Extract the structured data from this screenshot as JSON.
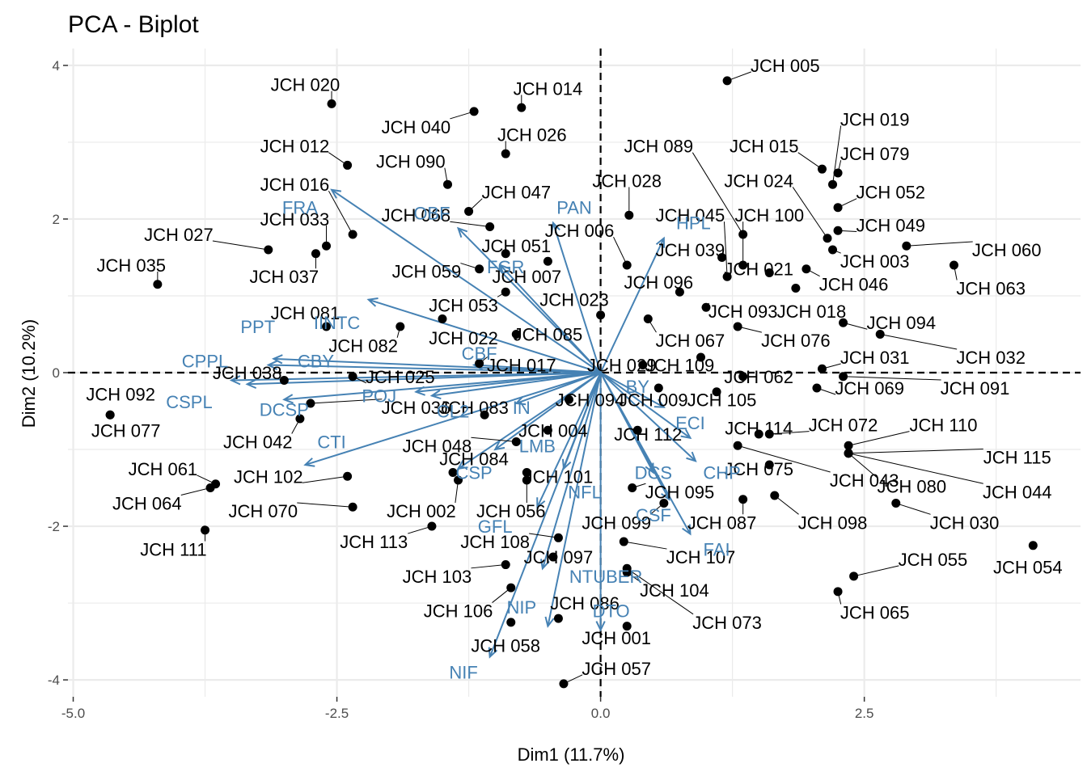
{
  "chart_data": {
    "type": "scatter",
    "title": "PCA - Biplot",
    "xlabel": "Dim1 (11.7%)",
    "ylabel": "Dim2 (10.2%)",
    "xlim": [
      -5.05,
      4.55
    ],
    "ylim": [
      -4.22,
      4.22
    ],
    "x_ticks": [
      -5.0,
      -2.5,
      0.0,
      2.5
    ],
    "x_tick_labels": [
      "-5.0",
      "-2.5",
      "0.0",
      "2.5"
    ],
    "y_ticks": [
      -4,
      -2,
      0,
      2,
      4
    ],
    "y_tick_labels": [
      "-4",
      "-2",
      "0",
      "2",
      "4"
    ],
    "grid": true,
    "reference_lines": {
      "x": 0,
      "y": 0,
      "style": "dashed"
    },
    "colors": {
      "individuals": "#000000",
      "variables": "#4682B4",
      "grid": "#ebebeb"
    },
    "individuals": [
      {
        "name": "JCH 005",
        "x": 1.2,
        "y": 3.8,
        "lx": 1.75,
        "ly": 4.0
      },
      {
        "name": "JCH 020",
        "x": -2.55,
        "y": 3.5,
        "lx": -2.8,
        "ly": 3.75
      },
      {
        "name": "JCH 014",
        "x": -0.75,
        "y": 3.45,
        "lx": -0.5,
        "ly": 3.7
      },
      {
        "name": "JCH 040",
        "x": -1.2,
        "y": 3.4,
        "lx": -1.75,
        "ly": 3.2
      },
      {
        "name": "JCH 026",
        "x": -0.9,
        "y": 2.85,
        "lx": -0.65,
        "ly": 3.1
      },
      {
        "name": "JCH 012",
        "x": -2.4,
        "y": 2.7,
        "lx": -2.9,
        "ly": 2.95
      },
      {
        "name": "JCH 090",
        "x": -1.45,
        "y": 2.45,
        "lx": -1.8,
        "ly": 2.75
      },
      {
        "name": "JCH 089",
        "x": 1.35,
        "y": 1.8,
        "lx": 0.55,
        "ly": 2.95
      },
      {
        "name": "JCH 015",
        "x": 2.1,
        "y": 2.65,
        "lx": 1.55,
        "ly": 2.95
      },
      {
        "name": "JCH 019",
        "x": 2.2,
        "y": 2.45,
        "lx": 2.6,
        "ly": 3.3
      },
      {
        "name": "JCH 079",
        "x": 2.25,
        "y": 2.6,
        "lx": 2.6,
        "ly": 2.85
      },
      {
        "name": "JCH 016",
        "x": -2.35,
        "y": 1.8,
        "lx": -2.9,
        "ly": 2.45
      },
      {
        "name": "JCH 047",
        "x": -1.25,
        "y": 2.1,
        "lx": -0.8,
        "ly": 2.35
      },
      {
        "name": "JCH 028",
        "x": 0.27,
        "y": 2.05,
        "lx": 0.25,
        "ly": 2.5
      },
      {
        "name": "JCH 024",
        "x": 2.15,
        "y": 1.75,
        "lx": 1.5,
        "ly": 2.5
      },
      {
        "name": "JCH 052",
        "x": 2.25,
        "y": 2.15,
        "lx": 2.75,
        "ly": 2.35
      },
      {
        "name": "JCH 033",
        "x": -2.6,
        "y": 1.65,
        "lx": -2.9,
        "ly": 2.0
      },
      {
        "name": "JCH 068",
        "x": -1.05,
        "y": 1.9,
        "lx": -1.75,
        "ly": 2.05
      },
      {
        "name": "JCH 027",
        "x": -3.15,
        "y": 1.6,
        "lx": -4.0,
        "ly": 1.8
      },
      {
        "name": "JCH 045",
        "x": 1.2,
        "y": 1.25,
        "lx": 0.85,
        "ly": 2.05
      },
      {
        "name": "JCH 100",
        "x": 1.35,
        "y": 1.4,
        "lx": 1.6,
        "ly": 2.05
      },
      {
        "name": "JCH 006",
        "x": 0.25,
        "y": 1.4,
        "lx": -0.2,
        "ly": 1.85
      },
      {
        "name": "JCH 049",
        "x": 2.25,
        "y": 1.85,
        "lx": 2.75,
        "ly": 1.92
      },
      {
        "name": "JCH 051",
        "x": -0.9,
        "y": 1.55,
        "lx": -0.8,
        "ly": 1.65
      },
      {
        "name": "JCH 039",
        "x": 1.15,
        "y": 1.5,
        "lx": 0.85,
        "ly": 1.6
      },
      {
        "name": "JCH 060",
        "x": 2.9,
        "y": 1.65,
        "lx": 3.85,
        "ly": 1.6
      },
      {
        "name": "JCH 035",
        "x": -4.2,
        "y": 1.15,
        "lx": -4.45,
        "ly": 1.4
      },
      {
        "name": "JCH 059",
        "x": -1.15,
        "y": 1.35,
        "lx": -1.65,
        "ly": 1.32
      },
      {
        "name": "JCH 007",
        "x": -0.5,
        "y": 1.45,
        "lx": -0.7,
        "ly": 1.25
      },
      {
        "name": "JCH 037",
        "x": -2.7,
        "y": 1.55,
        "lx": -3.0,
        "ly": 1.25
      },
      {
        "name": "JCH 003",
        "x": 2.2,
        "y": 1.6,
        "lx": 2.6,
        "ly": 1.45
      },
      {
        "name": "JCH 021",
        "x": 1.6,
        "y": 1.3,
        "lx": 1.5,
        "ly": 1.35
      },
      {
        "name": "JCH 063",
        "x": 3.35,
        "y": 1.4,
        "lx": 3.7,
        "ly": 1.1
      },
      {
        "name": "JCH 096",
        "x": 0.75,
        "y": 1.05,
        "lx": 0.55,
        "ly": 1.18
      },
      {
        "name": "JCH 046",
        "x": 1.95,
        "y": 1.35,
        "lx": 2.4,
        "ly": 1.15
      },
      {
        "name": "JCH 053",
        "x": -0.9,
        "y": 1.05,
        "lx": -1.3,
        "ly": 0.88
      },
      {
        "name": "JCH 023",
        "x": 0.0,
        "y": 0.75,
        "lx": -0.25,
        "ly": 0.95
      },
      {
        "name": "JCH 081",
        "x": -2.6,
        "y": 0.6,
        "lx": -2.8,
        "ly": 0.78
      },
      {
        "name": "JCH 093",
        "x": 1.0,
        "y": 0.85,
        "lx": 1.35,
        "ly": 0.8
      },
      {
        "name": "JCH 018",
        "x": 1.85,
        "y": 1.1,
        "lx": 2.0,
        "ly": 0.8
      },
      {
        "name": "JCH 094",
        "x": 2.3,
        "y": 0.65,
        "lx": 2.85,
        "ly": 0.65
      },
      {
        "name": "JCH 082",
        "x": -1.9,
        "y": 0.6,
        "lx": -2.25,
        "ly": 0.35
      },
      {
        "name": "JCH 022",
        "x": -1.5,
        "y": 0.7,
        "lx": -1.3,
        "ly": 0.45
      },
      {
        "name": "JCH 085",
        "x": -0.8,
        "y": 0.5,
        "lx": -0.5,
        "ly": 0.5
      },
      {
        "name": "JCH 067",
        "x": 0.45,
        "y": 0.7,
        "lx": 0.85,
        "ly": 0.42
      },
      {
        "name": "JCH 076",
        "x": 1.3,
        "y": 0.6,
        "lx": 1.85,
        "ly": 0.42
      },
      {
        "name": "JCH 031",
        "x": 2.1,
        "y": 0.05,
        "lx": 2.6,
        "ly": 0.2
      },
      {
        "name": "JCH 032",
        "x": 2.65,
        "y": 0.5,
        "lx": 3.7,
        "ly": 0.2
      },
      {
        "name": "JCH 017",
        "x": -1.15,
        "y": 0.12,
        "lx": -0.75,
        "ly": 0.1
      },
      {
        "name": "JCH 038",
        "x": -3.0,
        "y": -0.1,
        "lx": -3.35,
        "ly": 0.0
      },
      {
        "name": "JCH 025",
        "x": -2.35,
        "y": -0.05,
        "lx": -1.9,
        "ly": -0.05
      },
      {
        "name": "JCH 029",
        "x": 0.4,
        "y": 0.1,
        "lx": 0.2,
        "ly": 0.1
      },
      {
        "name": "JCH 109",
        "x": 0.95,
        "y": 0.2,
        "lx": 0.75,
        "ly": 0.1
      },
      {
        "name": "JCH 062",
        "x": 1.35,
        "y": -0.05,
        "lx": 1.5,
        "ly": -0.05
      },
      {
        "name": "JCH 069",
        "x": 2.05,
        "y": -0.2,
        "lx": 2.55,
        "ly": -0.2
      },
      {
        "name": "JCH 091",
        "x": 2.3,
        "y": -0.05,
        "lx": 3.55,
        "ly": -0.2
      },
      {
        "name": "JCH 092",
        "x": -4.65,
        "y": -0.55,
        "lx": -4.55,
        "ly": -0.28
      },
      {
        "name": "JCH 036",
        "x": -2.75,
        "y": -0.4,
        "lx": -1.75,
        "ly": -0.45
      },
      {
        "name": "JCH 083",
        "x": -1.1,
        "y": -0.55,
        "lx": -1.2,
        "ly": -0.45
      },
      {
        "name": "JCH 094b",
        "x": -0.3,
        "y": -0.35,
        "lx": -0.1,
        "ly": -0.35
      },
      {
        "name": "JCH 105",
        "x": 1.1,
        "y": -0.25,
        "lx": 1.15,
        "ly": -0.35
      },
      {
        "name": "JCH 009",
        "x": 0.55,
        "y": -0.2,
        "lx": 0.5,
        "ly": -0.35
      },
      {
        "name": "JCH 077",
        "x": -4.65,
        "y": -0.55,
        "lx": -4.5,
        "ly": -0.75
      },
      {
        "name": "JCH 042",
        "x": -2.85,
        "y": -0.6,
        "lx": -3.25,
        "ly": -0.9
      },
      {
        "name": "JCH 004",
        "x": -0.5,
        "y": -0.75,
        "lx": -0.45,
        "ly": -0.75
      },
      {
        "name": "JCH 112",
        "x": 0.35,
        "y": -0.75,
        "lx": 0.45,
        "ly": -0.8
      },
      {
        "name": "JCH 114",
        "x": 1.5,
        "y": -0.8,
        "lx": 1.5,
        "ly": -0.72
      },
      {
        "name": "JCH 072",
        "x": 1.6,
        "y": -0.8,
        "lx": 2.3,
        "ly": -0.68
      },
      {
        "name": "JCH 110",
        "x": 2.35,
        "y": -0.95,
        "lx": 3.25,
        "ly": -0.68
      },
      {
        "name": "JCH 048",
        "x": -0.8,
        "y": -0.9,
        "lx": -1.55,
        "ly": -0.95
      },
      {
        "name": "JCH 061",
        "x": -3.65,
        "y": -1.45,
        "lx": -4.15,
        "ly": -1.25
      },
      {
        "name": "JCH 084",
        "x": -1.4,
        "y": -1.3,
        "lx": -1.2,
        "ly": -1.12
      },
      {
        "name": "JCH 075",
        "x": 1.6,
        "y": -1.2,
        "lx": 1.5,
        "ly": -1.25
      },
      {
        "name": "JCH 115",
        "x": 2.35,
        "y": -1.05,
        "lx": 3.95,
        "ly": -1.1
      },
      {
        "name": "JCH 102",
        "x": -2.4,
        "y": -1.35,
        "lx": -3.15,
        "ly": -1.35
      },
      {
        "name": "JCH 101",
        "x": -0.7,
        "y": -1.3,
        "lx": -0.4,
        "ly": -1.35
      },
      {
        "name": "JCH 043",
        "x": 1.3,
        "y": -0.95,
        "lx": 2.5,
        "ly": -1.4
      },
      {
        "name": "JCH 095",
        "x": 0.3,
        "y": -1.5,
        "lx": 0.75,
        "ly": -1.55
      },
      {
        "name": "JCH 080",
        "x": 2.35,
        "y": -1.05,
        "lx": 2.95,
        "ly": -1.48
      },
      {
        "name": "JCH 044",
        "x": 2.35,
        "y": -1.05,
        "lx": 3.95,
        "ly": -1.55
      },
      {
        "name": "JCH 070",
        "x": -2.35,
        "y": -1.75,
        "lx": -3.2,
        "ly": -1.8
      },
      {
        "name": "JCH 064",
        "x": -3.7,
        "y": -1.5,
        "lx": -4.3,
        "ly": -1.7
      },
      {
        "name": "JCH 056",
        "x": -0.7,
        "y": -1.4,
        "lx": -0.85,
        "ly": -1.8
      },
      {
        "name": "JCH 002",
        "x": -1.35,
        "y": -1.4,
        "lx": -1.7,
        "ly": -1.8
      },
      {
        "name": "JCH 087",
        "x": 1.35,
        "y": -1.65,
        "lx": 1.15,
        "ly": -1.95
      },
      {
        "name": "JCH 098",
        "x": 1.65,
        "y": -1.6,
        "lx": 2.2,
        "ly": -1.95
      },
      {
        "name": "JCH 030",
        "x": 2.8,
        "y": -1.7,
        "lx": 3.45,
        "ly": -1.95
      },
      {
        "name": "JCH 099",
        "x": 0.6,
        "y": -1.7,
        "lx": 0.15,
        "ly": -1.95
      },
      {
        "name": "JCH 111",
        "x": -3.75,
        "y": -2.05,
        "lx": -4.05,
        "ly": -2.3
      },
      {
        "name": "JCH 113",
        "x": -1.6,
        "y": -2.0,
        "lx": -2.15,
        "ly": -2.2
      },
      {
        "name": "JCH 108",
        "x": -0.4,
        "y": -2.15,
        "lx": -1.0,
        "ly": -2.2
      },
      {
        "name": "JCH 097",
        "x": -0.45,
        "y": -2.4,
        "lx": -0.4,
        "ly": -2.4
      },
      {
        "name": "JCH 107",
        "x": 0.22,
        "y": -2.2,
        "lx": 0.95,
        "ly": -2.4
      },
      {
        "name": "JCH 055",
        "x": 2.4,
        "y": -2.65,
        "lx": 3.15,
        "ly": -2.43
      },
      {
        "name": "JCH 054",
        "x": 4.1,
        "y": -2.25,
        "lx": 4.05,
        "ly": -2.53
      },
      {
        "name": "JCH 103",
        "x": -0.9,
        "y": -2.5,
        "lx": -1.55,
        "ly": -2.65
      },
      {
        "name": "JCH 104",
        "x": 0.25,
        "y": -2.6,
        "lx": 0.7,
        "ly": -2.83
      },
      {
        "name": "JCH 065",
        "x": 2.25,
        "y": -2.85,
        "lx": 2.6,
        "ly": -3.12
      },
      {
        "name": "JCH 106",
        "x": -0.85,
        "y": -2.8,
        "lx": -1.35,
        "ly": -3.1
      },
      {
        "name": "JCH 086",
        "x": -0.4,
        "y": -3.2,
        "lx": -0.15,
        "ly": -3.0
      },
      {
        "name": "JCH 073",
        "x": 0.25,
        "y": -2.55,
        "lx": 1.2,
        "ly": -3.25
      },
      {
        "name": "JCH 058",
        "x": -0.85,
        "y": -3.25,
        "lx": -0.9,
        "ly": -3.55
      },
      {
        "name": "JCH 001",
        "x": 0.25,
        "y": -3.3,
        "lx": 0.15,
        "ly": -3.45
      },
      {
        "name": "JCH 057",
        "x": -0.35,
        "y": -4.05,
        "lx": 0.15,
        "ly": -3.85
      }
    ],
    "variables": [
      {
        "name": "FRA",
        "x": -2.55,
        "y": 2.38,
        "lx": -2.85,
        "ly": 2.15
      },
      {
        "name": "OBF",
        "x": -1.35,
        "y": 1.88,
        "lx": -1.6,
        "ly": 2.08
      },
      {
        "name": "PAN",
        "x": -0.45,
        "y": 1.95,
        "lx": -0.25,
        "ly": 2.15
      },
      {
        "name": "HPL",
        "x": 0.6,
        "y": 1.75,
        "lx": 0.88,
        "ly": 1.95
      },
      {
        "name": "FGR",
        "x": -0.95,
        "y": 1.4,
        "lx": -0.9,
        "ly": 1.38
      },
      {
        "name": "IINTC",
        "x": -2.2,
        "y": 0.95,
        "lx": -2.5,
        "ly": 0.65
      },
      {
        "name": "PPT",
        "x": -3.1,
        "y": 0.18,
        "lx": -3.25,
        "ly": 0.6
      },
      {
        "name": "CBY",
        "x": -3.15,
        "y": 0.1,
        "lx": -2.7,
        "ly": 0.15
      },
      {
        "name": "CPPL",
        "x": -3.5,
        "y": -0.1,
        "lx": -3.75,
        "ly": 0.15
      },
      {
        "name": "CBF",
        "x": -1.2,
        "y": 0.1,
        "lx": -1.15,
        "ly": 0.25
      },
      {
        "name": "CSPL",
        "x": -3.35,
        "y": -0.15,
        "lx": -3.9,
        "ly": -0.38
      },
      {
        "name": "DCSP",
        "x": -3.0,
        "y": -0.35,
        "lx": -3.0,
        "ly": -0.48
      },
      {
        "name": "POJ",
        "x": -1.75,
        "y": -0.25,
        "lx": -2.1,
        "ly": -0.3
      },
      {
        "name": "CL2",
        "x": -1.6,
        "y": -0.3,
        "lx": -1.4,
        "ly": -0.5
      },
      {
        "name": "IN",
        "x": -0.8,
        "y": -0.4,
        "lx": -0.75,
        "ly": -0.45
      },
      {
        "name": "BY",
        "x": 0.6,
        "y": -0.45,
        "lx": 0.35,
        "ly": -0.18
      },
      {
        "name": "ECI",
        "x": 0.85,
        "y": -0.85,
        "lx": 0.85,
        "ly": -0.65
      },
      {
        "name": "CTI",
        "x": -2.8,
        "y": -1.2,
        "lx": -2.55,
        "ly": -0.9
      },
      {
        "name": "LMB",
        "x": -1.0,
        "y": -1.0,
        "lx": -0.6,
        "ly": -0.95
      },
      {
        "name": "CHP",
        "x": 0.9,
        "y": -1.15,
        "lx": 1.15,
        "ly": -1.3
      },
      {
        "name": "CSP",
        "x": -1.35,
        "y": -1.25,
        "lx": -1.2,
        "ly": -1.3
      },
      {
        "name": "DCS",
        "x": 0.5,
        "y": -1.3,
        "lx": 0.5,
        "ly": -1.3
      },
      {
        "name": "NFL",
        "x": -0.35,
        "y": -1.25,
        "lx": -0.15,
        "ly": -1.55
      },
      {
        "name": "CSF",
        "x": 0.65,
        "y": -1.65,
        "lx": 0.5,
        "ly": -1.85
      },
      {
        "name": "FAI",
        "x": 0.85,
        "y": -2.1,
        "lx": 1.1,
        "ly": -2.3
      },
      {
        "name": "GFL",
        "x": -0.6,
        "y": -1.75,
        "lx": -1.0,
        "ly": -2.0
      },
      {
        "name": "NTUBER",
        "x": -0.55,
        "y": -2.55,
        "lx": 0.05,
        "ly": -2.65
      },
      {
        "name": "NIP",
        "x": -0.5,
        "y": -3.3,
        "lx": -0.75,
        "ly": -3.05
      },
      {
        "name": "DTO",
        "x": 0.0,
        "y": -3.35,
        "lx": 0.1,
        "ly": -3.1
      },
      {
        "name": "NIF",
        "x": -1.05,
        "y": -3.7,
        "lx": -1.3,
        "ly": -3.9
      }
    ]
  }
}
